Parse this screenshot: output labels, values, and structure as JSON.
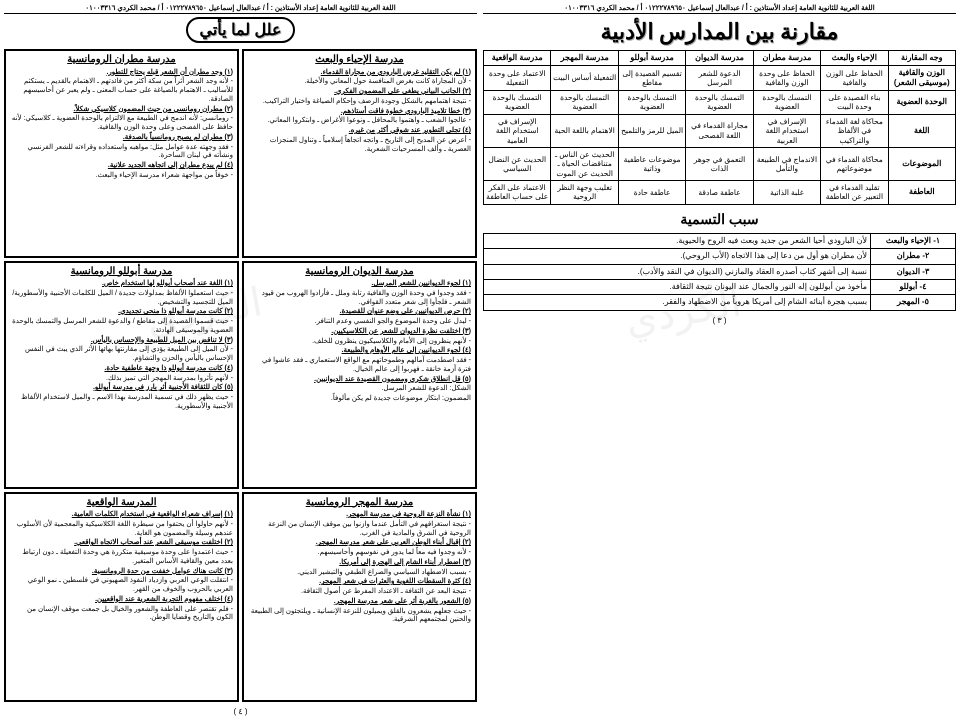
{
  "header_text": "اللغة العربية للثانوية العامة  إعداد الأستاذين : أ / عبدالعال إسماعيل ٠١٢٢٢٧٨٩٦٥٠  أ / محمد الكردي ٠١٠٠٣٣١٦",
  "right_page": {
    "title": "مقارنة بين المدارس الأدبية",
    "compare": {
      "cols": [
        "وجه المقارنة",
        "الإحياء والبعث",
        "مدرسة مطران",
        "مدرسة الديوان",
        "مدرسة أبوللو",
        "مدرسة المهجر",
        "مدرسة الواقعية"
      ],
      "rows": [
        {
          "label": "الوزن والقافية (موسيقى الشعر)",
          "cells": [
            "الحفاظ على الوزن والقافية",
            "الحفاظ على وحدة الوزن والقافية",
            "الدعوة للشعر المرسل",
            "تقسيم القصيدة إلى مقاطع",
            "التفعيلة أساس البيت",
            "الاعتماد على وحدة التفعيلة"
          ]
        },
        {
          "label": "الوحدة العضوية",
          "cells": [
            "بناء القصيدة على وحدة البيت",
            "التمسك بالوحدة العضوية",
            "التمسك بالوحدة العضوية",
            "التمسك بالوحدة العضوية",
            "التمسك بالوحدة العضوية",
            "التمسك بالوحدة العضوية"
          ]
        },
        {
          "label": "اللغة",
          "cells": [
            "محاكاة لغة القدماء في الألفاظ والتراكيب",
            "الإسراف في استخدام اللغة العربية",
            "مجاراة القدماء في اللغة الفصحى",
            "الميل للرمز والتلميح",
            "الاهتمام باللغة الحية",
            "الإسراف في استخدام اللغة العامية"
          ]
        },
        {
          "label": "الموضوعات",
          "cells": [
            "محاكاة القدماء في موضوعاتهم",
            "الاندماج في الطبيعة والتأمل",
            "التعمق في جوهر الذات",
            "موضوعات عاطفية وذاتية",
            "الحديث عن الناس ـ متناقضات الحياة ـ الحديث عن الموت",
            "الحديث عن النضال السياسي"
          ]
        },
        {
          "label": "العاطفة",
          "cells": [
            "تقليد القدماء في التعبير عن العاطفة",
            "غلبة الذاتية",
            "عاطفة صادقة",
            "عاطفة حادة",
            "تغليب وجهة النظر الروحية",
            "الاعتماد على الفكر على حساب العاطفة"
          ]
        }
      ]
    },
    "naming_title": "سبب التسمية",
    "naming": [
      {
        "label": "١- الإحياء والبعث",
        "text": "لأن البارودي أحيا الشعر من جديد وبعث فيه الروح والحيوية."
      },
      {
        "label": "٢- مطران",
        "text": "لأن مطران هو أول من دعا إلى هذا الاتجاه (الأب الروحي)."
      },
      {
        "label": "٣- الديوان",
        "text": "نسبة إلى أشهر كتاب أصدره العقاد والمازني (الديوان في النقد والأدب)."
      },
      {
        "label": "٤- أبوللو",
        "text": "مأخوذ من أبوللون إله النور والجمال عند اليونان نتيجة الثقافة."
      },
      {
        "label": "٥- المهجر",
        "text": "بسبب هجرة أبنائه الشام إلى أمريكا هروباً من الاضطهاد والفقر."
      }
    ],
    "page_num": "( ٣ )"
  },
  "left_page": {
    "pill": "علل لما يأتي",
    "boxes": [
      {
        "title": "مدرسة الإحياء والبعث",
        "lines": [
          "<b>(١) لم يكن التقليد غرض البارودي من مجاراة القدماء.</b>",
          "- لأن المجاراة كانت بغرض المنافسة حول المعاني والأخيلة.",
          "<b>(٢) الجانب البياني يطغى على المضمون الفكري.</b>",
          "- نتيجة اهتمامهم بالشكل وجودة الرصف وإحكام الصياغة واختيار التراكيب.",
          "<b>(٣) خطا تلاميذ البارودي خطوة فاقت أستاذهم.</b>",
          "- عالجوا الشعب ـ واهتموا بالمحافل ـ ونوعوا الأغراض ـ وابتكروا المعاني.",
          "<b>(٤) تجلى التطوير عند شوقي أكثر من غيره.</b>",
          "- أعرض عن المديح إلى التاريخ ـ واتجه اتجاهاً إسلامياً ـ وتناول المنجزات العصرية ـ وألف المسرحيات الشعرية."
        ]
      },
      {
        "title": "مدرسة مطران الرومانسية",
        "lines": [
          "<b>(١) وجد مطران أن الشعر قبله يحتاج للتطور.</b>",
          "- لأنه وجد الشعر أثراً من سكة أكثر من فائدتهم ـ الاهتمام بالقديم ـ يستكثم للأساليب ـ الاهتمام بالصياغة على حساب المعنى ـ ولم يعبر عن أحاسيسهم الصادقة.",
          "<b>(٢) مطران رومانسي من حيث المضمون كلاسيكي شكلاً.</b>",
          "- رومانسي: لأنه اندمج في الطبيعة مع الالتزام بالوحدة العضوية ـ كلاسيكي: لأنه حافظ على الفصحى وعلى وحدة الوزن والقافية.",
          "<b>(٣) مطران لم يصبح رومانسياً بالصدفة.</b>",
          "- فقد وجهته عدة عوامل مثل: مواهبه واستعداده وقراءته للشعر الفرنسي ونشأته في لبنان الساحرة.",
          "<b>(٤) لم يبدع مطران إلى اتجاهه الجديد علانية.</b>",
          "- خوفاً من مواجهة شعراء مدرسة الإحياء والبعث."
        ]
      },
      {
        "title": "مدرسة الديوان الرومانسية",
        "lines": [
          "<b>(١) لجوء الديوانيين للشعر المرسل.</b>",
          "- فقد وجدوا في وحدة الوزن والقافية رتابة وملل ـ فأرادوا الهروب من قيود الشعر ـ فلجأوا إلى شعر متعدد القوافي.",
          "<b>(٢) حرص الديوانيين على وضع عنوان للقصيدة.</b>",
          "- ليدل على وحدة الموضوع والجو النفسي وعدم التنافر.",
          "<b>(٣) اختلفت نظرة الديوان للشعر عن الكلاسيكيين.</b>",
          "- لأنهم ينظرون إلى الأمام والكلاسيكيون ينظرون للخلف.",
          "<b>(٤) لجوء الديوانيين إلى عالم الأوهام والطبيعة.</b>",
          "- فقد اصطدمت آمالهم وطموحاتهم مع الواقع الاستعماري ـ فقد عاشوا في فترة أزمة خانقة ـ فهربوا إلى عالم الخيال.",
          "<b>(٥) قل انطلاق شكري ومضمون القصيدة عند الديوانيين.</b>",
          "الشكل: الدعوة للشعر المرسل.",
          "المضمون: ابتكار موضوعات جديدة لم يكن مألوفاً."
        ]
      },
      {
        "title": "مدرسة أبوللو الرومانسية",
        "lines": [
          "<b>(١) اللغة عند أصحاب أبوللو لها استخدام خاص.</b>",
          "- حيث استعملوا الألفاظ بمدلولات جديدة / الميل للكلمات الأجنبية والأسطورية/الميل للتجسيد والتشخيص.",
          "<b>(٢) كانت مدرسة أبوللو ذا منحى تجديدي.</b>",
          "- حيث قسموا القصيدة إلى مقاطع / والدعوة للشعر المرسل والتمسك بالوحدة العضوية والموسيقى الهادئة.",
          "<b>(٣) لا تناقض بين الميل للطبيعة والإحساس باليأس.</b>",
          "- لأن الميل إلى الطبيعة يؤدي إلى مقارنتها بهائها الأثر الذي يبث في النفس الإحساس باليأس والحزن والتشاؤم.",
          "<b>(٤) كانت مدرسة أبوللو ذا وجهة عاطفية حادة.</b>",
          "- لأنهم تأثروا بمدرسة المهجر التي تميز بذلك.",
          "<b>(٥) كان للثقافة الأجنبية أثر بارز في مدرسة أبوللو.</b>",
          "- حيث يظهر ذلك في تسمية المدرسة بهذا الاسم ـ والميل لاستخدام الألفاظ الأجنبية والأسطورية."
        ]
      },
      {
        "title": "مدرسة المهجر الرومانسية",
        "lines": [
          "<b>(١) نشأة النزعة الروحية في مدرسة المهجر.</b>",
          "- نتيجة استغراقهم في التأمل عندما وازنوا بين موقف الإنسان من النزعة الروحية في الشرق والمادية في الغرب.",
          "<b>(٢) إقبال أبناء الوطن العربي على شعر مدرسة المهجر.</b>",
          "- لأنه وجدوا فيه معاً لما يدور في نفوسهم وأحاسيسهم.",
          "<b>(٣) اضطرار أبناء الشام إلى الهجرة إلى أمريكا.</b>",
          "- بسبب الاضطهاد السياسي والصراع الطبقي والتبشير الديني.",
          "<b>(٤) كثرة السقطات اللغوية والعثرات في شعر المهجر.</b>",
          "- نتيجة البعد عن الثقافة ـ الاعتداد المفرط عن أصول الثقافة.",
          "<b>(٥) الشعور بالغربة أثر على شعر مدرسة المهجر.</b>",
          "- حيث جعلهم يشعرون بالقلق ويميلون للنزعة الإنسانية ـ ويلتجئون إلى الطبيعة والحنين لمجتمعهم الشرقية."
        ]
      },
      {
        "title": "المدرسة الواقعية",
        "lines": [
          "<b>(١) إسراف شعراء الواقعية في استخدام الكلمات العامية.</b>",
          "- لأنهم حاولوا أن يحتفوا من سيطرة اللغة الكلاسيكية والمعجمية لأن الأسلوب عندهم وسيلة والمضمون هو الغاية.",
          "<b>(٢) اختلفت موسيقى الشعر عند أصحاب الاتجاه الواقعي.</b>",
          "- حيث اعتمدوا على وحدة موسيقية متكررة هي وحدة التفعيلة ـ دون ارتباط بعدد معين والقافية الأساس المتغير.",
          "<b>(٣) كانت هناك عوامل خففت من حدة الرومانسية.</b>",
          "- انتقلت الوعي العربي وازدياد النفوذ الصهيوني في فلسطين ـ نمو الوعي العربي بالحروب والخوف من القهر.",
          "<b>(٤) اختلف مفهوم التجربة الشعرية عند الواقعيين.</b>",
          "- فلم تقتصر على العاطفة والشعور والخيال بل جمعت موقف الإنسان من الكون والتاريخ وقضايا الوطن."
        ]
      }
    ],
    "page_num": "( ٤ )"
  }
}
